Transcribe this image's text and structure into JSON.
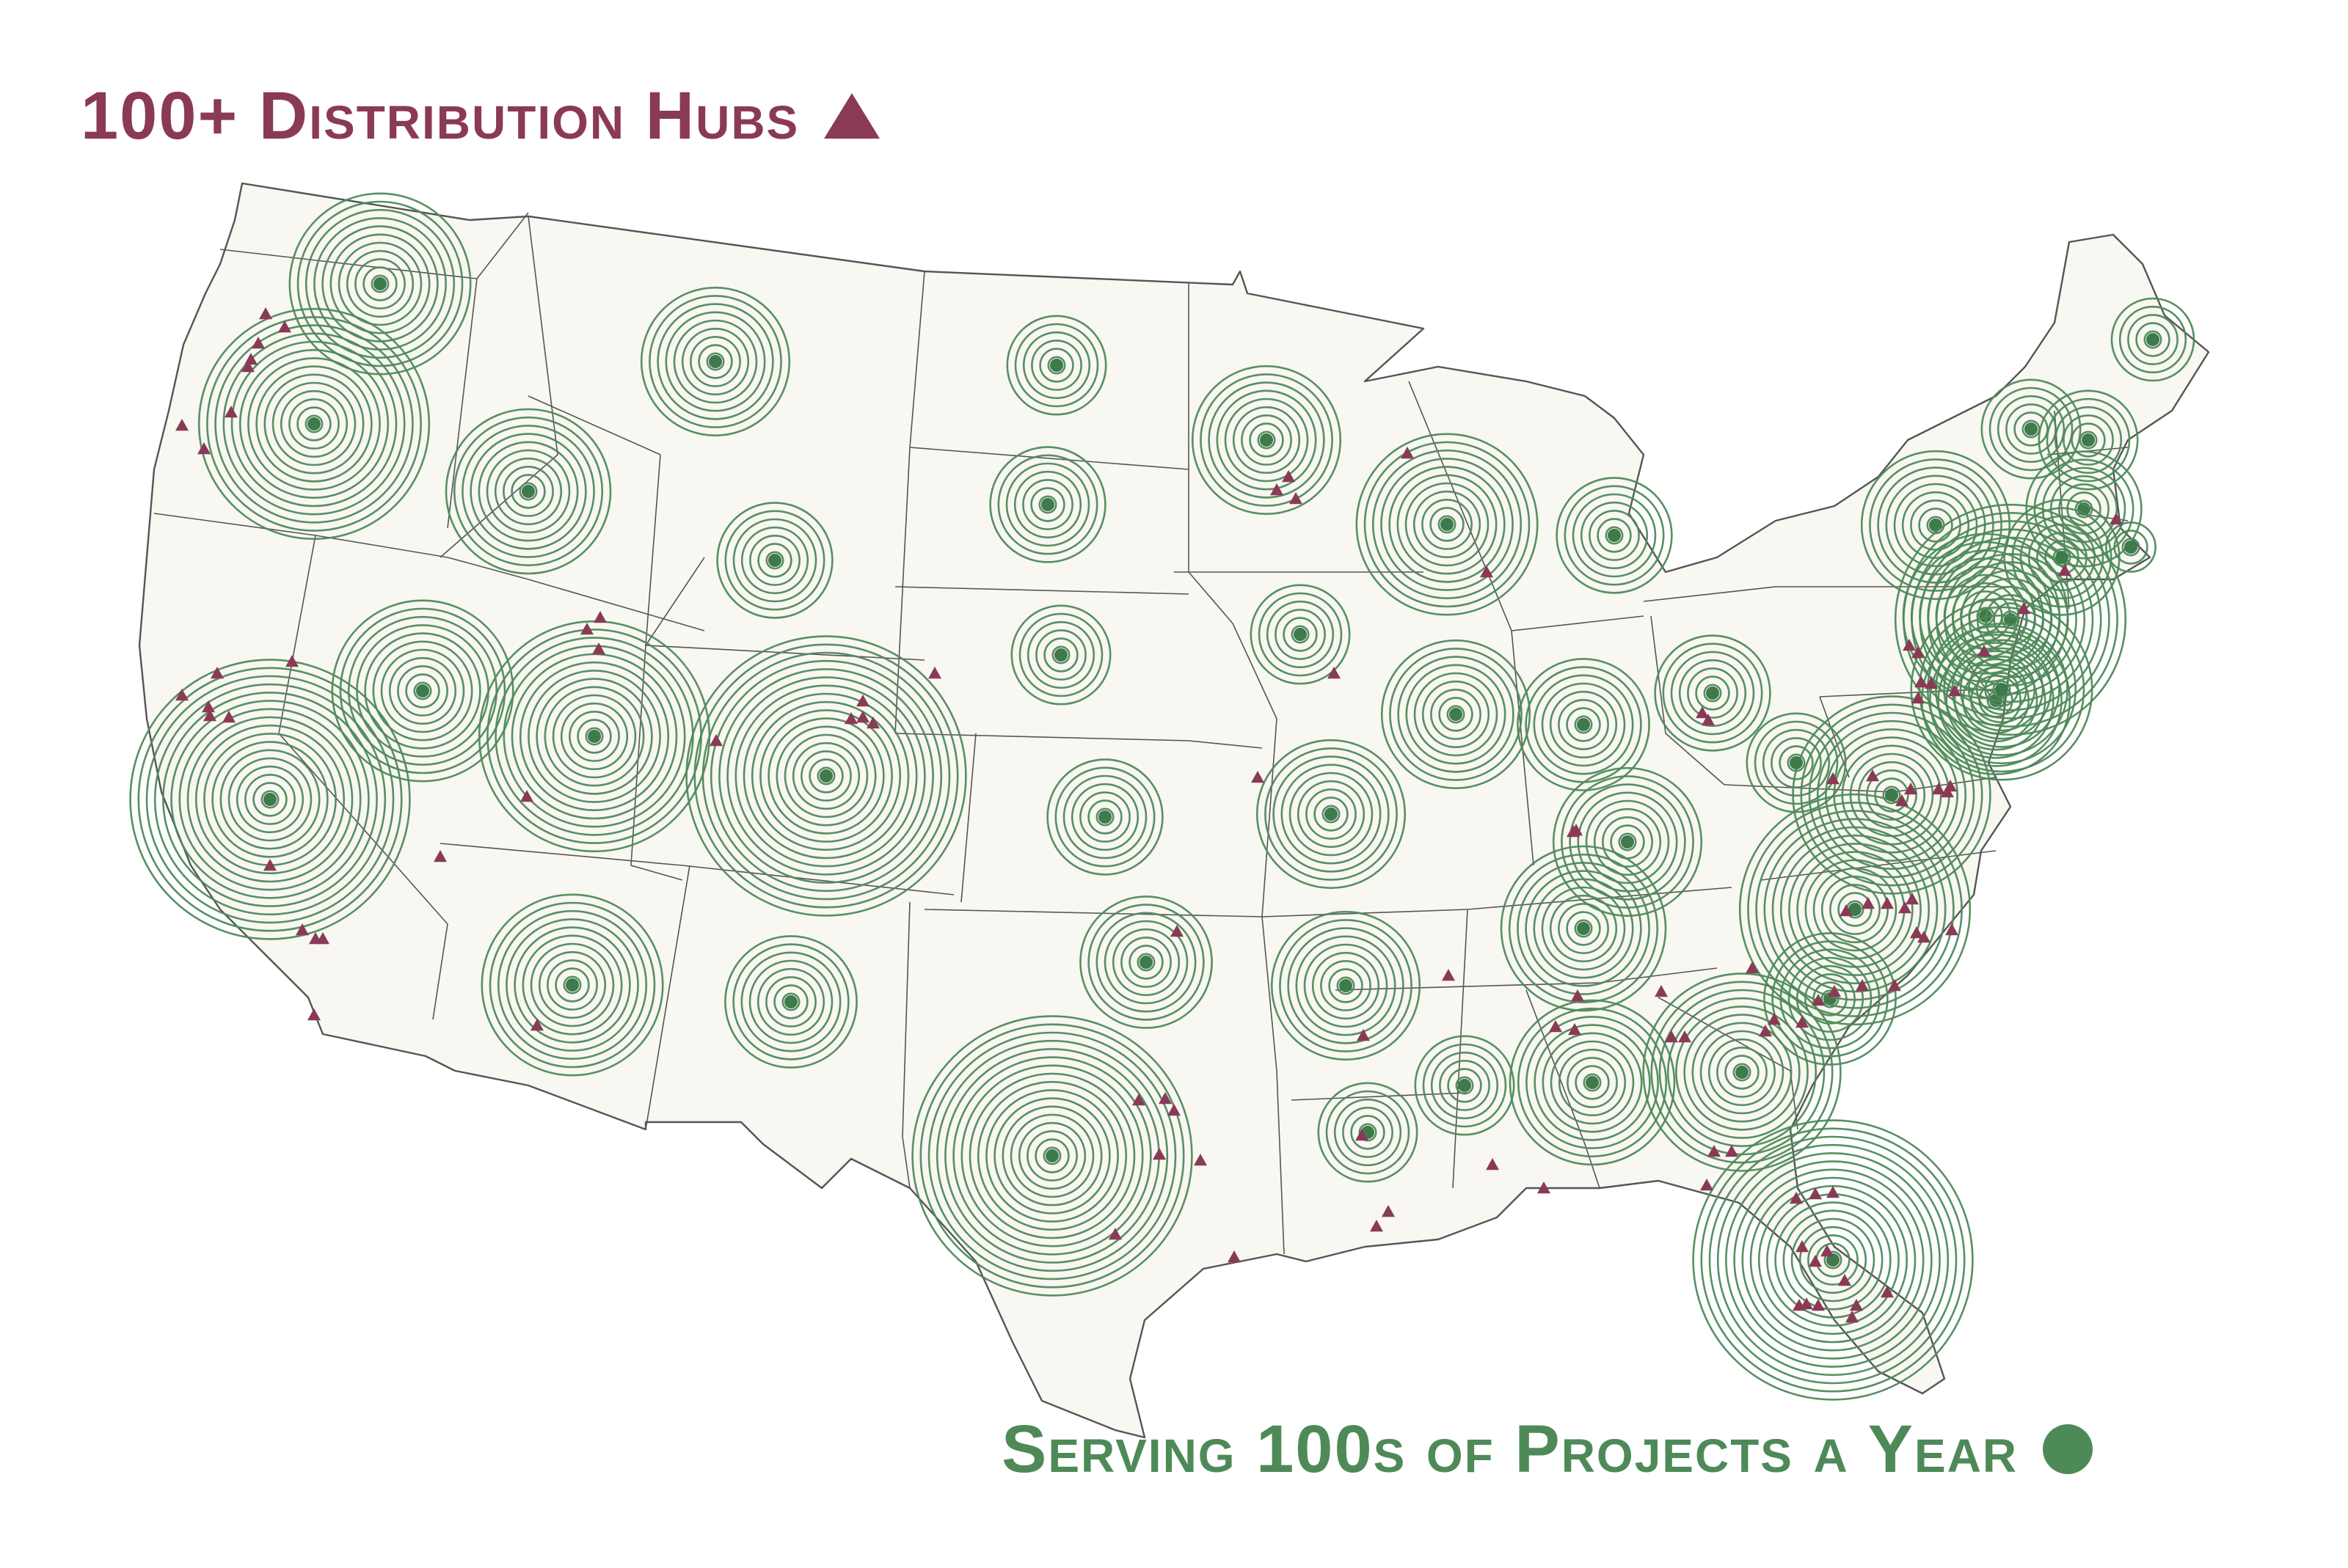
{
  "legend": {
    "hubs_label": "100+ Distribution Hubs",
    "hubs_symbol": "triangle-marker",
    "projects_label": "Serving 100s of Projects a Year",
    "projects_symbol": "circle-marker"
  },
  "colors": {
    "hub": "#8a3a56",
    "project": "#4e8a58",
    "project_dot": "#3f7a4c",
    "land": "#f8f7f1",
    "border": "#555555",
    "background": "#ffffff"
  },
  "map": {
    "region": "Contiguous United States",
    "states": [
      "WA",
      "OR",
      "CA",
      "ID",
      "NV",
      "MT",
      "WY",
      "UT",
      "AZ",
      "CO",
      "NM",
      "ND",
      "SD",
      "NE",
      "KS",
      "OK",
      "TX",
      "MN",
      "IA",
      "MO",
      "AR",
      "LA",
      "WI",
      "IL",
      "MI",
      "IN",
      "OH",
      "KY",
      "TN",
      "MS",
      "AL",
      "GA",
      "FL",
      "SC",
      "NC",
      "VA",
      "WV",
      "MD",
      "DE",
      "PA",
      "NJ",
      "NY",
      "CT",
      "RI",
      "MA",
      "VT",
      "NH",
      "ME"
    ]
  },
  "project_markers": [
    {
      "state": "WA",
      "rings": 11
    },
    {
      "state": "OR",
      "rings": 14
    },
    {
      "state": "ID",
      "rings": 10
    },
    {
      "state": "MT",
      "rings": 9
    },
    {
      "state": "ND",
      "rings": 6
    },
    {
      "state": "SD",
      "rings": 7
    },
    {
      "state": "WY",
      "rings": 7
    },
    {
      "state": "NE",
      "rings": 6
    },
    {
      "state": "MN",
      "rings": 9
    },
    {
      "state": "WI",
      "rings": 11
    },
    {
      "state": "MI",
      "rings": 7
    },
    {
      "state": "IA",
      "rings": 6
    },
    {
      "state": "NV",
      "rings": 11
    },
    {
      "state": "UT",
      "rings": 14
    },
    {
      "state": "CA",
      "rings": 17
    },
    {
      "state": "CO",
      "rings": 17
    },
    {
      "state": "KS",
      "rings": 7
    },
    {
      "state": "MO",
      "rings": 9
    },
    {
      "state": "IL",
      "rings": 9
    },
    {
      "state": "IN",
      "rings": 8
    },
    {
      "state": "OH",
      "rings": 7
    },
    {
      "state": "AZ",
      "rings": 11
    },
    {
      "state": "NM",
      "rings": 8
    },
    {
      "state": "OK",
      "rings": 8
    },
    {
      "state": "AR",
      "rings": 9
    },
    {
      "state": "TX",
      "rings": 17
    },
    {
      "state": "LA",
      "rings": 6
    },
    {
      "state": "MS",
      "rings": 6
    },
    {
      "state": "AL",
      "rings": 10
    },
    {
      "state": "TN",
      "rings": 10
    },
    {
      "state": "KY",
      "rings": 9
    },
    {
      "state": "GA",
      "rings": 12
    },
    {
      "state": "FL",
      "rings": 17
    },
    {
      "state": "SC",
      "rings": 8
    },
    {
      "state": "NC",
      "rings": 14
    },
    {
      "state": "VA",
      "rings": 12
    },
    {
      "state": "WV",
      "rings": 6
    },
    {
      "state": "PA",
      "rings": 9
    },
    {
      "state": "NY",
      "rings": 10
    },
    {
      "state": "MD",
      "rings": 9
    },
    {
      "state": "NJ",
      "rings": 14
    },
    {
      "state": "DE",
      "rings": 11
    },
    {
      "state": "VT",
      "rings": 6
    },
    {
      "state": "NH",
      "rings": 6
    },
    {
      "state": "MA",
      "rings": 7
    },
    {
      "state": "CT",
      "rings": 7
    },
    {
      "state": "RI",
      "rings": 3
    },
    {
      "state": "ME",
      "rings": 5
    }
  ],
  "hub_count_shown": 112
}
